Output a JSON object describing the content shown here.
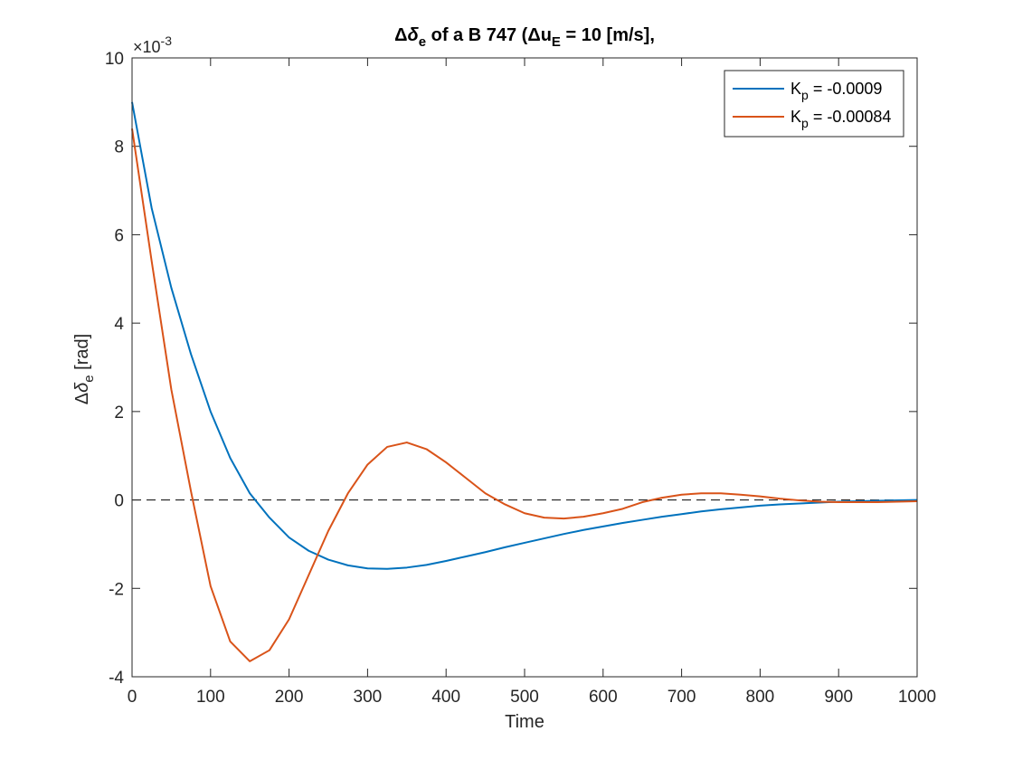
{
  "chart_data": {
    "type": "line",
    "title": {
      "delta": "Δ",
      "delta_sym": "δ",
      "delta_sub": "e",
      "middle": " of a B 747 (",
      "u_delta": "Δ",
      "u_sym": "u",
      "u_sub": "E",
      "end": " = 10 [m/s],"
    },
    "xlabel": "Time",
    "ylabel": {
      "delta": "Δ",
      "sym": "δ",
      "sub": "e",
      "unit": "  [rad]"
    },
    "xlim": [
      0,
      1000
    ],
    "ylim": [
      -0.004,
      0.01
    ],
    "x_ticks": [
      0,
      100,
      200,
      300,
      400,
      500,
      600,
      700,
      800,
      900,
      1000
    ],
    "y_ticks": [
      -4,
      -2,
      0,
      2,
      4,
      6,
      8,
      10
    ],
    "y_exponent": {
      "base": "×10",
      "power": "-3"
    },
    "grid": false,
    "zero_line": {
      "y": 0,
      "style": "dashed",
      "color": "#000000"
    },
    "legend_position": "top-right",
    "series": [
      {
        "name": "K_p = -0.0009",
        "legend": {
          "k": "K",
          "sub": "p",
          "value": " = -0.0009"
        },
        "color": "#0072BD",
        "x": [
          0,
          25,
          50,
          75,
          100,
          125,
          150,
          175,
          200,
          225,
          250,
          275,
          300,
          325,
          350,
          375,
          400,
          425,
          450,
          475,
          500,
          525,
          550,
          575,
          600,
          625,
          650,
          675,
          700,
          725,
          750,
          775,
          800,
          825,
          850,
          875,
          900,
          925,
          950,
          975,
          1000
        ],
        "y": [
          0.009,
          0.0066,
          0.0048,
          0.0033,
          0.002,
          0.00095,
          0.00015,
          -0.0004,
          -0.00085,
          -0.00115,
          -0.00135,
          -0.00148,
          -0.00155,
          -0.00156,
          -0.00153,
          -0.00147,
          -0.00138,
          -0.00128,
          -0.00118,
          -0.00107,
          -0.00097,
          -0.00087,
          -0.00077,
          -0.00068,
          -0.0006,
          -0.00052,
          -0.00045,
          -0.00038,
          -0.00032,
          -0.00026,
          -0.00021,
          -0.00017,
          -0.00013,
          -0.0001,
          -8e-05,
          -6e-05,
          -4e-05,
          -3e-05,
          -2e-05,
          -1e-05,
          0
        ]
      },
      {
        "name": "K_p = -0.00084",
        "legend": {
          "k": "K",
          "sub": "p",
          "value": " = -0.00084"
        },
        "color": "#D95319",
        "x": [
          0,
          25,
          50,
          75,
          100,
          125,
          150,
          175,
          200,
          225,
          250,
          275,
          300,
          325,
          350,
          375,
          400,
          425,
          450,
          475,
          500,
          525,
          550,
          575,
          600,
          625,
          650,
          675,
          700,
          725,
          750,
          775,
          800,
          825,
          850,
          875,
          900,
          925,
          950,
          975,
          1000
        ],
        "y": [
          0.0084,
          0.0054,
          0.0025,
          0.0002,
          -0.00195,
          -0.0032,
          -0.00365,
          -0.0034,
          -0.0027,
          -0.0017,
          -0.0007,
          0.00015,
          0.0008,
          0.0012,
          0.0013,
          0.00115,
          0.00085,
          0.0005,
          0.00015,
          -0.0001,
          -0.0003,
          -0.0004,
          -0.00042,
          -0.00038,
          -0.0003,
          -0.0002,
          -5e-05,
          5e-05,
          0.00012,
          0.00015,
          0.00015,
          0.00012,
          8e-05,
          3e-05,
          -1e-05,
          -4e-05,
          -5e-05,
          -5e-05,
          -5e-05,
          -4e-05,
          -3e-05
        ]
      }
    ]
  }
}
